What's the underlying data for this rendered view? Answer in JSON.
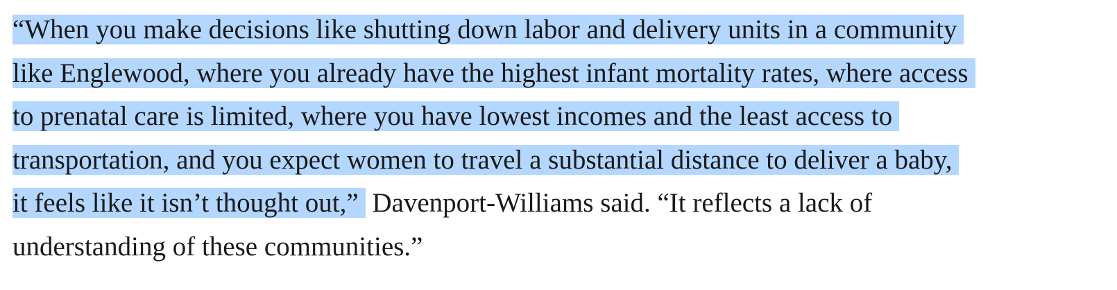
{
  "article": {
    "colors": {
      "text": "#1a1a1a",
      "selection_highlight": "#b3d7ff",
      "background": "#ffffff"
    },
    "lines": [
      {
        "selected": "“When you make decisions like shutting down labor and delivery units in a community",
        "unselected": ""
      },
      {
        "selected": "like Englewood, where you already have the highest infant mortality rates, where access",
        "unselected": ""
      },
      {
        "selected": "to prenatal care is limited, where you have lowest incomes and the least access to",
        "unselected": ""
      },
      {
        "selected": "transportation, and you expect women to travel a substantial distance to deliver a baby,",
        "unselected": ""
      },
      {
        "selected": "it feels like it isn’t thought out,”",
        "unselected": " Davenport-Williams said. “It reflects a lack of"
      },
      {
        "selected": "",
        "unselected": "understanding of these communities.”"
      }
    ]
  }
}
